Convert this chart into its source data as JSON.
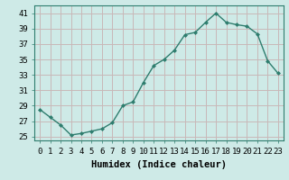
{
  "xlabel": "Humidex (Indice chaleur)",
  "ylabel": "",
  "x": [
    0,
    1,
    2,
    3,
    4,
    5,
    6,
    7,
    8,
    9,
    10,
    11,
    12,
    13,
    14,
    15,
    16,
    17,
    18,
    19,
    20,
    21,
    22,
    23
  ],
  "y": [
    28.5,
    27.5,
    26.5,
    25.2,
    25.4,
    25.7,
    26.0,
    26.8,
    29.0,
    29.5,
    32.0,
    34.2,
    35.0,
    36.2,
    38.2,
    38.5,
    39.8,
    41.0,
    39.8,
    39.5,
    39.3,
    38.3,
    34.8,
    33.2
  ],
  "line_color": "#2e7d6e",
  "marker": "D",
  "marker_size": 2.0,
  "background_color": "#ceeae7",
  "grid_color": "#c8b8b8",
  "ylim": [
    24.5,
    42
  ],
  "xlim": [
    -0.5,
    23.5
  ],
  "yticks": [
    25,
    27,
    29,
    31,
    33,
    35,
    37,
    39,
    41
  ],
  "xticks": [
    0,
    1,
    2,
    3,
    4,
    5,
    6,
    7,
    8,
    9,
    10,
    11,
    12,
    13,
    14,
    15,
    16,
    17,
    18,
    19,
    20,
    21,
    22,
    23
  ],
  "xtick_labels": [
    "0",
    "1",
    "2",
    "3",
    "4",
    "5",
    "6",
    "7",
    "8",
    "9",
    "10",
    "11",
    "12",
    "13",
    "14",
    "15",
    "16",
    "17",
    "18",
    "19",
    "20",
    "21",
    "22",
    "23"
  ],
  "tick_fontsize": 6.5,
  "xlabel_fontsize": 7.5,
  "line_width": 1.0
}
